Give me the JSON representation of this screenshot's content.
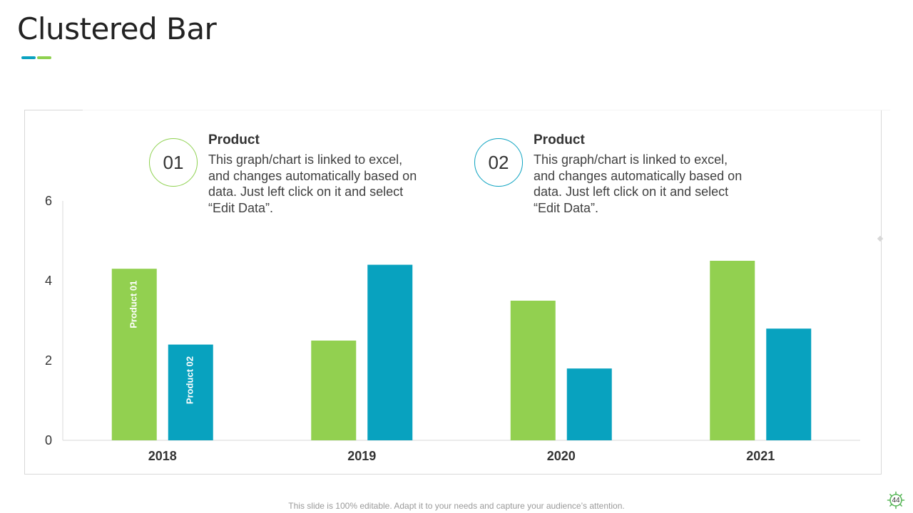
{
  "slide": {
    "title": "Clustered Bar",
    "footer": "This slide is 100% editable. Adapt it to your needs and capture your audience’s attention.",
    "page_number": "44"
  },
  "legend": [
    {
      "number": "01",
      "title": "Product",
      "description": "This graph/chart is linked to excel, and changes automatically based on data. Just left click on it and select “Edit Data”."
    },
    {
      "number": "02",
      "title": "Product",
      "description": "This graph/chart is linked to excel, and changes automatically based on data. Just left click on it and select “Edit Data”."
    }
  ],
  "colors": {
    "series1": "#92d050",
    "series2": "#08a2bf",
    "accent_blue": "#0aa2c0",
    "accent_green": "#8ed14f"
  },
  "chart_data": {
    "type": "bar",
    "title": "",
    "xlabel": "",
    "ylabel": "",
    "categories": [
      "2018",
      "2019",
      "2020",
      "2021"
    ],
    "series": [
      {
        "name": "Product 01",
        "values": [
          4.3,
          2.5,
          3.5,
          4.5
        ]
      },
      {
        "name": "Product 02",
        "values": [
          2.4,
          4.4,
          1.8,
          2.8
        ]
      }
    ],
    "ylim": [
      0,
      6
    ],
    "yticks": [
      0,
      2,
      4,
      6
    ],
    "grid": false
  }
}
